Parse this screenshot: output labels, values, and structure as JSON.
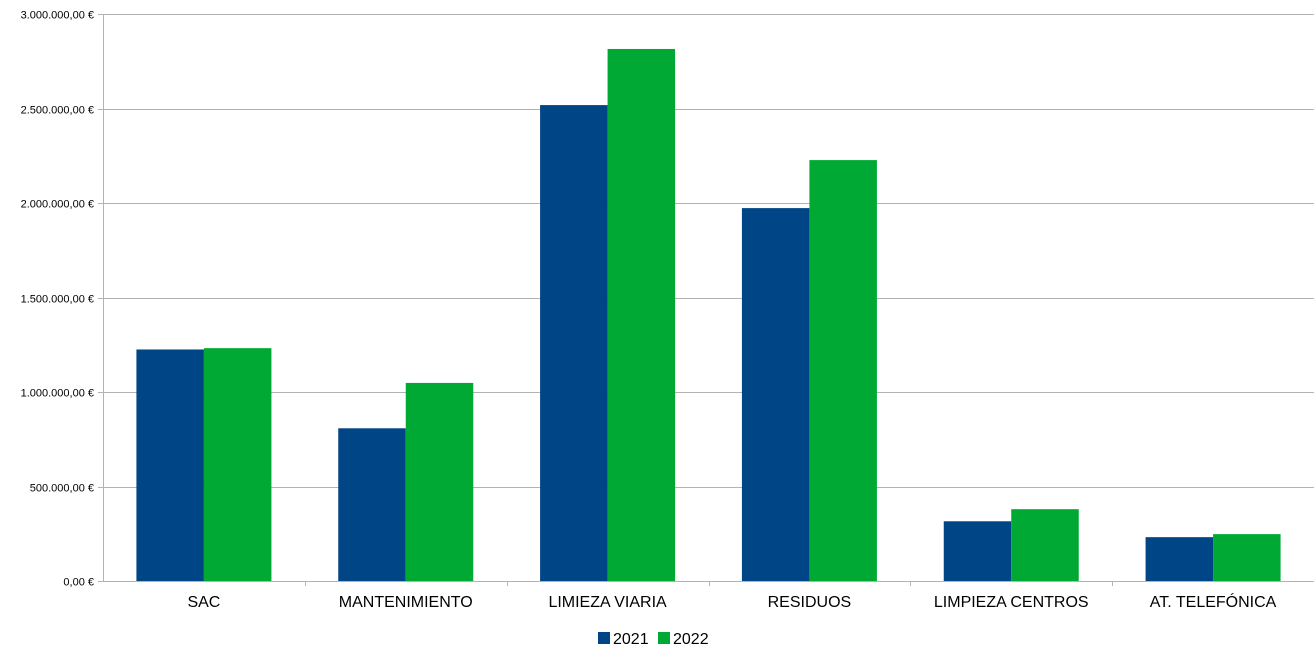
{
  "chart_data": {
    "type": "bar",
    "title": "",
    "xlabel": "",
    "ylabel": "",
    "categories": [
      "SAC",
      "MANTENIMIENTO",
      "LIMIEZA VIARIA",
      "RESIDUOS",
      "LIMPIEZA CENTROS",
      "AT. TELEFÓNICA"
    ],
    "series": [
      {
        "name": "2021",
        "color": "#004586",
        "values": [
          1225000,
          808000,
          2518000,
          1973000,
          316000,
          232000
        ]
      },
      {
        "name": "2022",
        "color": "#00a933",
        "values": [
          1232000,
          1048000,
          2815000,
          2227000,
          380000,
          248000
        ]
      }
    ],
    "ylim": [
      0,
      3000000
    ],
    "yticks": [
      0,
      500000,
      1000000,
      1500000,
      2000000,
      2500000,
      3000000
    ],
    "ytick_labels": [
      "0,00 €",
      "500.000,00 €",
      "1.000.000,00 €",
      "1.500.000,00 €",
      "2.000.000,00 €",
      "2.500.000,00 €",
      "3.000.000,00 €"
    ],
    "grid": true,
    "legend": "bottom-center"
  }
}
